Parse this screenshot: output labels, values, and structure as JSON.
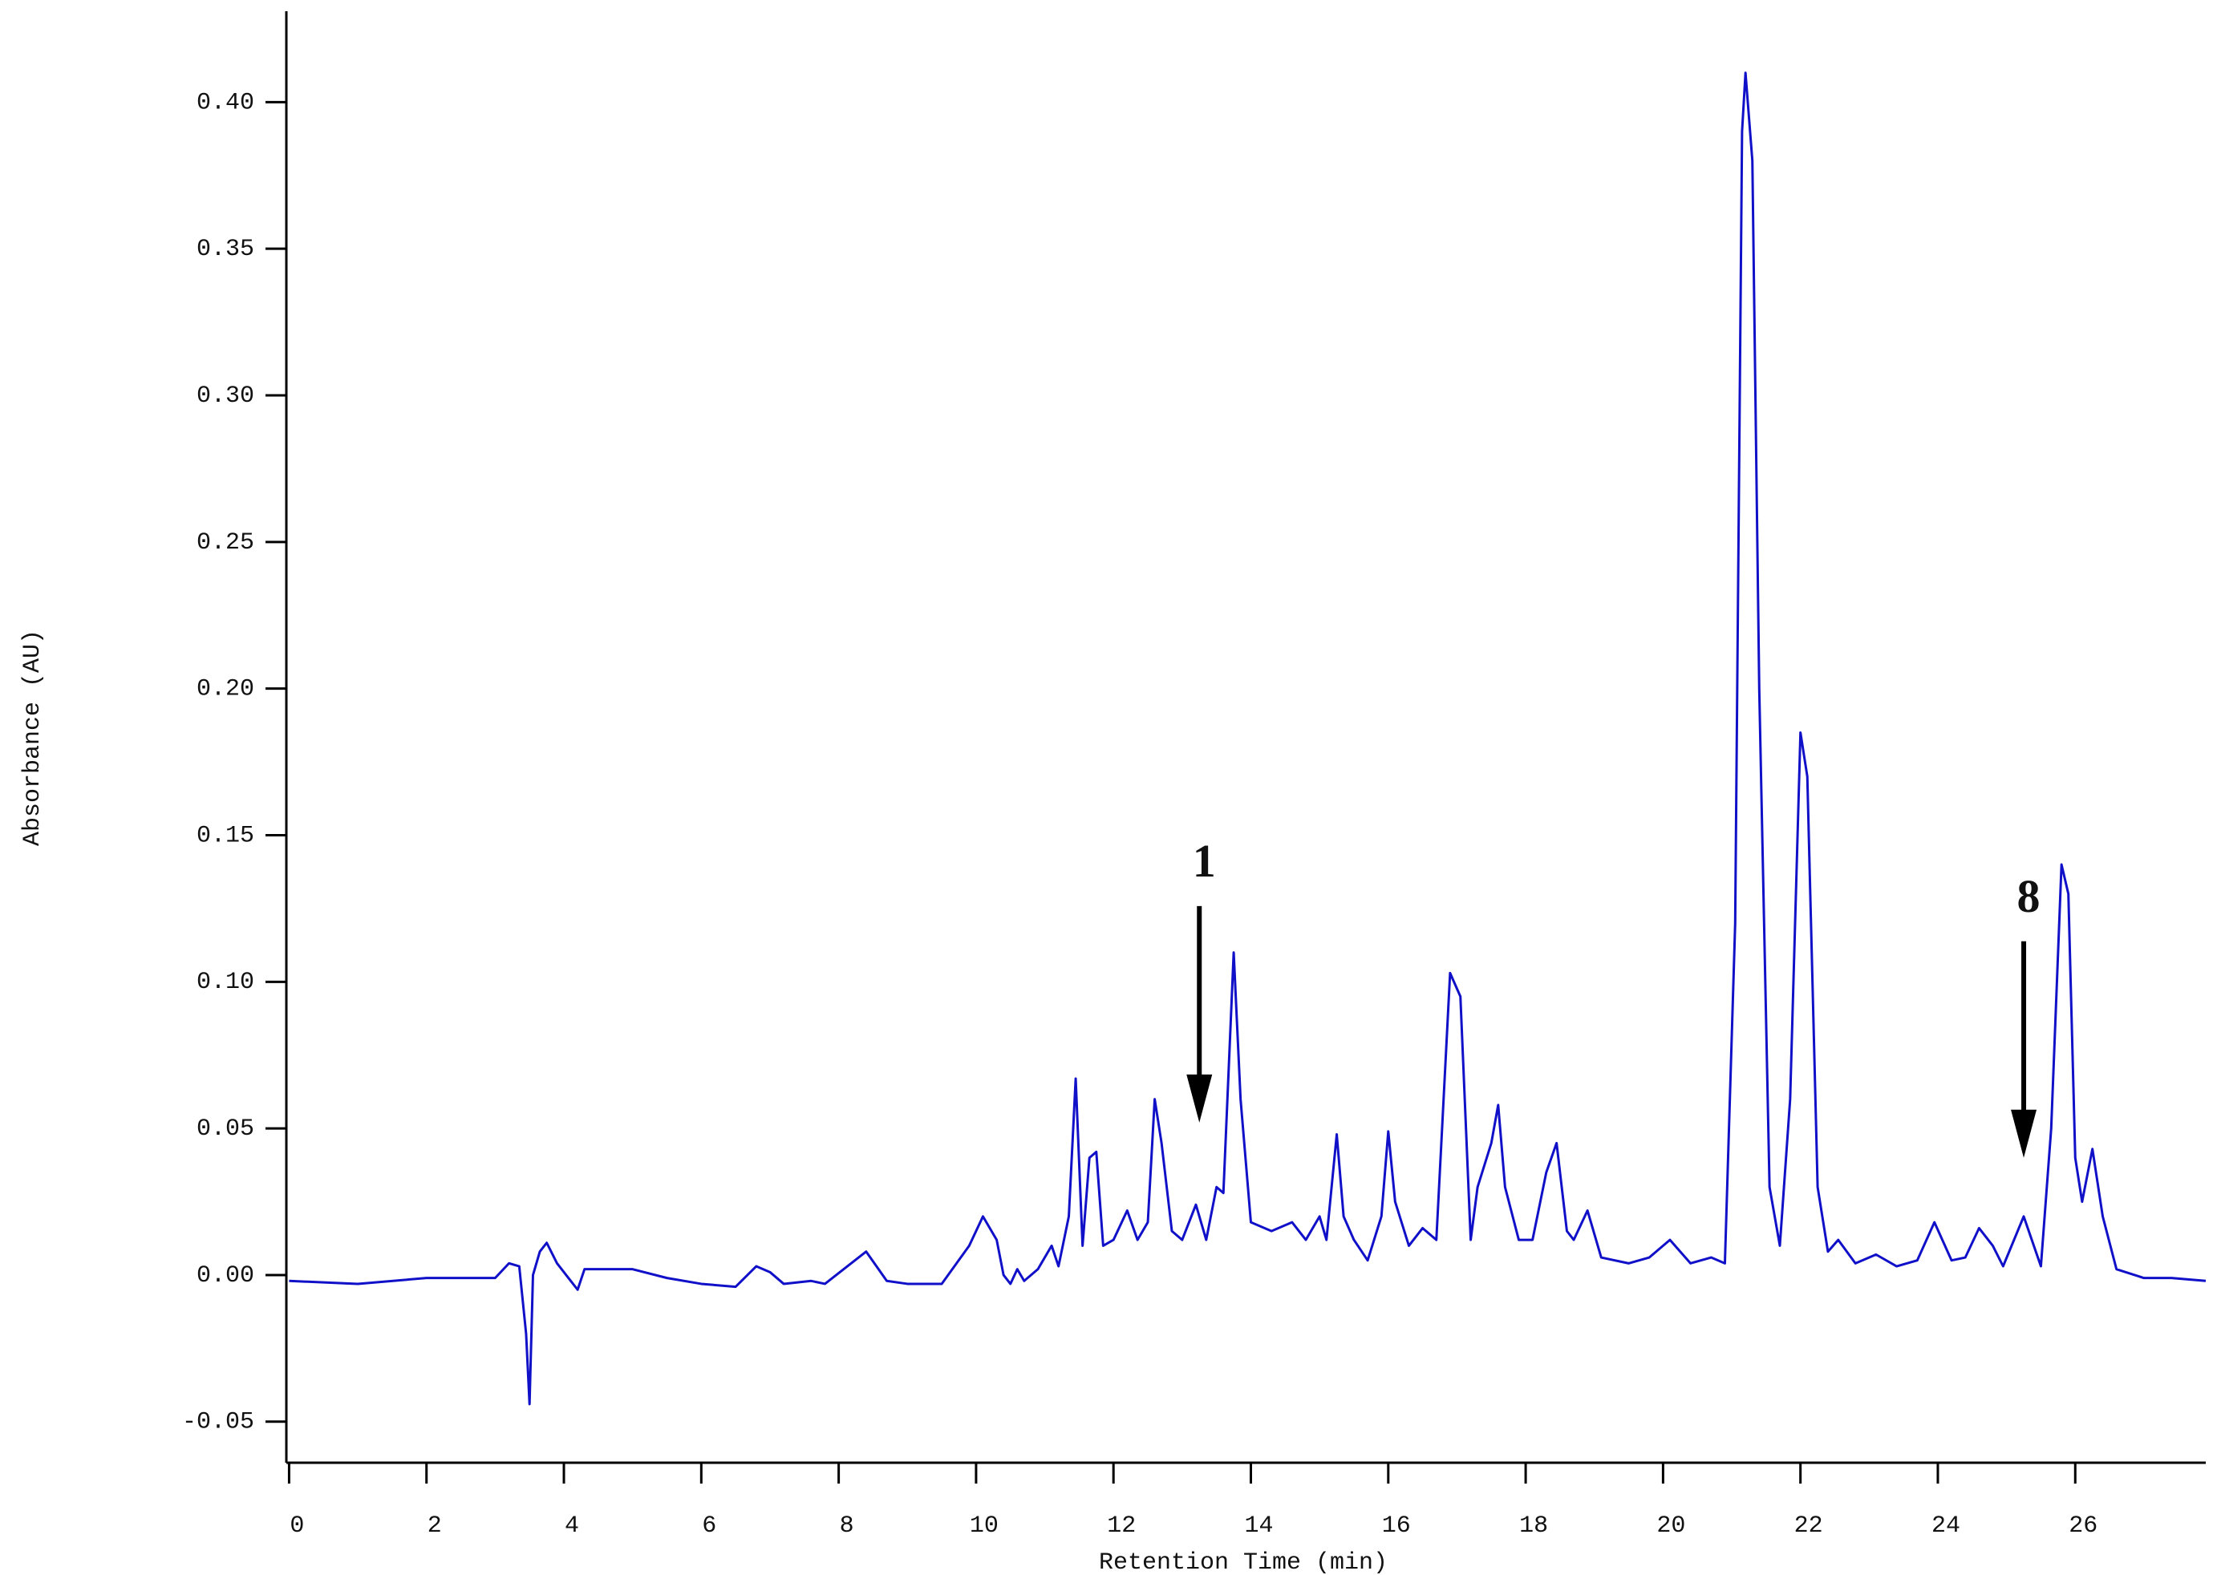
{
  "chart_data": {
    "type": "line",
    "xlabel": "Retention Time (min)",
    "ylabel": "Absorbance (AU)",
    "color": "#1010c8",
    "xlim": [
      -0.04,
      27.9
    ],
    "ylim": [
      -0.064,
      0.431
    ],
    "xticks": [
      0,
      2,
      4,
      6,
      8,
      10,
      12,
      14,
      16,
      18,
      20,
      22,
      24,
      26
    ],
    "yticks": [
      -0.05,
      {
        "value": 0,
        "label": "0.00"
      },
      0.05,
      {
        "value": 0.1,
        "label": "0.10"
      },
      0.15,
      {
        "value": 0.2,
        "label": "0.20"
      },
      0.25,
      {
        "value": 0.3,
        "label": "0.30"
      },
      0.35,
      {
        "value": 0.4,
        "label": "0.40"
      }
    ],
    "x": [
      0,
      1,
      2,
      2.5,
      3.0,
      3.2,
      3.35,
      3.45,
      3.5,
      3.55,
      3.65,
      3.75,
      3.9,
      4.1,
      4.2,
      4.3,
      5.0,
      5.5,
      6.0,
      6.5,
      6.8,
      7.0,
      7.2,
      7.6,
      7.8,
      8.4,
      8.7,
      9.0,
      9.5,
      9.9,
      10.1,
      10.3,
      10.4,
      10.5,
      10.6,
      10.7,
      10.9,
      11.1,
      11.2,
      11.35,
      11.45,
      11.55,
      11.65,
      11.75,
      11.85,
      12.0,
      12.2,
      12.35,
      12.5,
      12.6,
      12.7,
      12.85,
      13.0,
      13.2,
      13.35,
      13.5,
      13.6,
      13.75,
      13.85,
      14.0,
      14.3,
      14.6,
      14.8,
      15.0,
      15.1,
      15.25,
      15.35,
      15.5,
      15.7,
      15.9,
      16.0,
      16.1,
      16.3,
      16.5,
      16.7,
      16.9,
      17.05,
      17.2,
      17.3,
      17.5,
      17.6,
      17.7,
      17.9,
      18.1,
      18.3,
      18.45,
      18.6,
      18.7,
      18.9,
      19.1,
      19.5,
      19.8,
      20.1,
      20.4,
      20.7,
      20.9,
      21.05,
      21.15,
      21.2,
      21.3,
      21.4,
      21.55,
      21.7,
      21.85,
      22.0,
      22.1,
      22.25,
      22.4,
      22.55,
      22.8,
      23.1,
      23.4,
      23.7,
      23.95,
      24.2,
      24.4,
      24.6,
      24.8,
      24.95,
      25.25,
      25.5,
      25.65,
      25.8,
      25.9,
      26.0,
      26.1,
      26.25,
      26.4,
      26.6,
      27.0,
      27.4,
      27.9
    ],
    "values": [
      -0.002,
      -0.003,
      -0.001,
      -0.001,
      -0.001,
      0.004,
      0.003,
      -0.02,
      -0.044,
      0.0,
      0.008,
      0.011,
      0.004,
      -0.002,
      -0.005,
      0.002,
      0.002,
      -0.001,
      -0.003,
      -0.004,
      0.003,
      0.001,
      -0.003,
      -0.002,
      -0.003,
      0.008,
      -0.002,
      -0.003,
      -0.003,
      0.01,
      0.02,
      0.012,
      0.0,
      -0.003,
      0.002,
      -0.002,
      0.002,
      0.01,
      0.003,
      0.02,
      0.067,
      0.01,
      0.04,
      0.042,
      0.01,
      0.012,
      0.022,
      0.012,
      0.018,
      0.06,
      0.045,
      0.015,
      0.012,
      0.024,
      0.012,
      0.03,
      0.028,
      0.11,
      0.06,
      0.018,
      0.015,
      0.018,
      0.012,
      0.02,
      0.012,
      0.048,
      0.02,
      0.012,
      0.005,
      0.02,
      0.049,
      0.025,
      0.01,
      0.016,
      0.012,
      0.103,
      0.095,
      0.012,
      0.03,
      0.045,
      0.058,
      0.03,
      0.012,
      0.012,
      0.035,
      0.045,
      0.015,
      0.012,
      0.022,
      0.006,
      0.004,
      0.006,
      0.012,
      0.004,
      0.006,
      0.004,
      0.12,
      0.39,
      0.41,
      0.38,
      0.2,
      0.03,
      0.01,
      0.06,
      0.185,
      0.17,
      0.03,
      0.008,
      0.012,
      0.004,
      0.007,
      0.003,
      0.005,
      0.018,
      0.005,
      0.006,
      0.016,
      0.01,
      0.003,
      0.02,
      0.003,
      0.05,
      0.14,
      0.13,
      0.04,
      0.025,
      0.043,
      0.02,
      0.002,
      -0.001,
      -0.001,
      -0.002
    ],
    "annotations": [
      {
        "text": "1",
        "x": 13.25,
        "y": 0.052
      },
      {
        "text": "8",
        "x": 25.25,
        "y": 0.04
      }
    ]
  }
}
